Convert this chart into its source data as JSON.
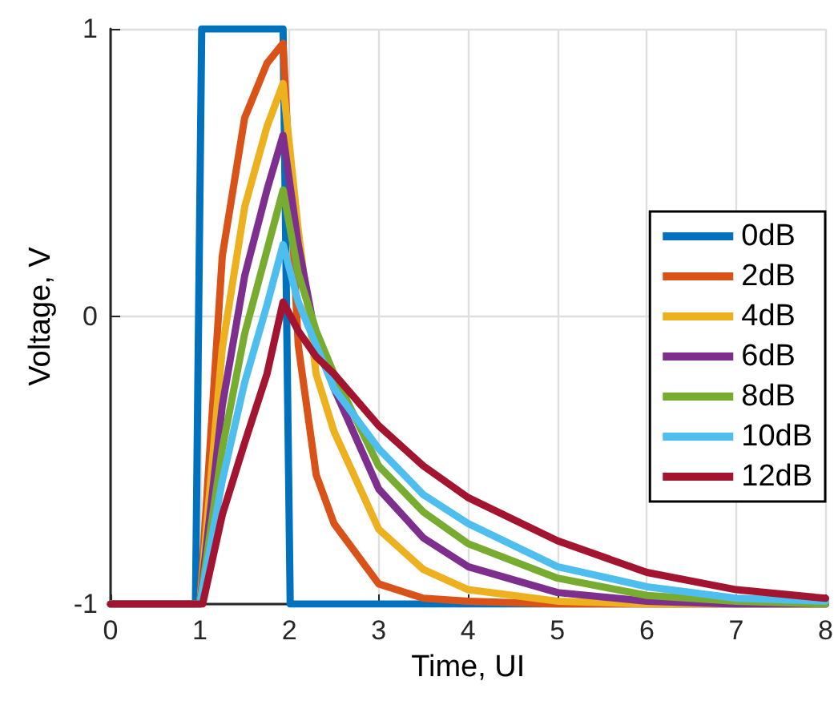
{
  "chart_data": {
    "type": "line",
    "xlabel": "Time, UI",
    "ylabel": "Voltage, V",
    "xlim": [
      0,
      8
    ],
    "xticks": [
      0,
      1,
      2,
      3,
      4,
      5,
      6,
      7,
      8
    ],
    "ylim": [
      -1,
      1
    ],
    "yticks": [
      -1,
      0,
      1
    ],
    "grid": true,
    "legend": "right",
    "marker": "none",
    "line_style": "solid",
    "series": [
      {
        "name": "0dB",
        "color": "#0072bd",
        "x": [
          0,
          0.95,
          1.02,
          1.93,
          2.01,
          8
        ],
        "values": [
          -1,
          -1,
          1,
          1,
          -1,
          -1
        ]
      },
      {
        "name": "2dB",
        "color": "#d95319",
        "x": [
          0,
          1,
          1.25,
          1.5,
          1.75,
          1.93,
          2.1,
          2.3,
          2.5,
          3,
          3.5,
          4,
          5,
          6,
          7,
          8
        ],
        "values": [
          -1,
          -1,
          0.21,
          0.69,
          0.88,
          0.95,
          -0.1,
          -0.55,
          -0.72,
          -0.93,
          -0.98,
          -0.99,
          -1,
          -1,
          -1,
          -1
        ]
      },
      {
        "name": "4dB",
        "color": "#edb120",
        "x": [
          0,
          1,
          1.25,
          1.5,
          1.75,
          1.93,
          2.1,
          2.3,
          2.5,
          3,
          3.5,
          4,
          5,
          6,
          7,
          8
        ],
        "values": [
          -1,
          -1,
          -0.11,
          0.38,
          0.66,
          0.81,
          0.3,
          -0.2,
          -0.4,
          -0.74,
          -0.88,
          -0.95,
          -0.99,
          -1,
          null,
          -1
        ]
      },
      {
        "name": "6dB",
        "color": "#7e2f8e",
        "x": [
          0,
          1,
          1.25,
          1.5,
          1.75,
          1.93,
          2.1,
          2.3,
          2.5,
          3,
          3.5,
          4,
          5,
          6,
          7,
          8
        ],
        "values": [
          -1,
          -1,
          -0.31,
          0.14,
          0.44,
          0.63,
          0.25,
          -0.08,
          -0.25,
          -0.6,
          -0.77,
          -0.87,
          -0.96,
          -0.99,
          -1,
          -1
        ]
      },
      {
        "name": "8dB",
        "color": "#77ac30",
        "x": [
          0,
          1,
          1.25,
          1.5,
          1.75,
          1.93,
          2.1,
          2.3,
          2.5,
          3,
          3.5,
          4,
          5,
          6,
          7,
          8
        ],
        "values": [
          -1,
          -1,
          -0.46,
          -0.06,
          0.23,
          0.44,
          0.15,
          -0.05,
          -0.2,
          -0.52,
          -0.68,
          -0.79,
          -0.91,
          -0.97,
          -0.99,
          -1
        ]
      },
      {
        "name": "10dB",
        "color": "#4dbeee",
        "x": [
          0,
          1,
          1.25,
          1.5,
          1.75,
          1.93,
          2.1,
          2.3,
          2.5,
          3,
          3.5,
          4,
          5,
          6,
          7,
          8
        ],
        "values": [
          -1,
          -1,
          -0.57,
          -0.23,
          0.04,
          0.25,
          0.05,
          -0.1,
          -0.25,
          -0.46,
          -0.62,
          -0.72,
          -0.87,
          -0.94,
          -0.98,
          -0.99
        ]
      },
      {
        "name": "12dB",
        "color": "#a2142f",
        "x": [
          0,
          1.03,
          1.25,
          1.5,
          1.75,
          1.93,
          2.1,
          2.3,
          2.5,
          3,
          3.5,
          4,
          5,
          6,
          7,
          8
        ],
        "values": [
          -1,
          -1,
          -0.69,
          -0.44,
          -0.2,
          0.05,
          -0.05,
          -0.14,
          -0.2,
          -0.38,
          -0.52,
          -0.63,
          -0.78,
          -0.89,
          -0.95,
          -0.98
        ]
      }
    ]
  }
}
